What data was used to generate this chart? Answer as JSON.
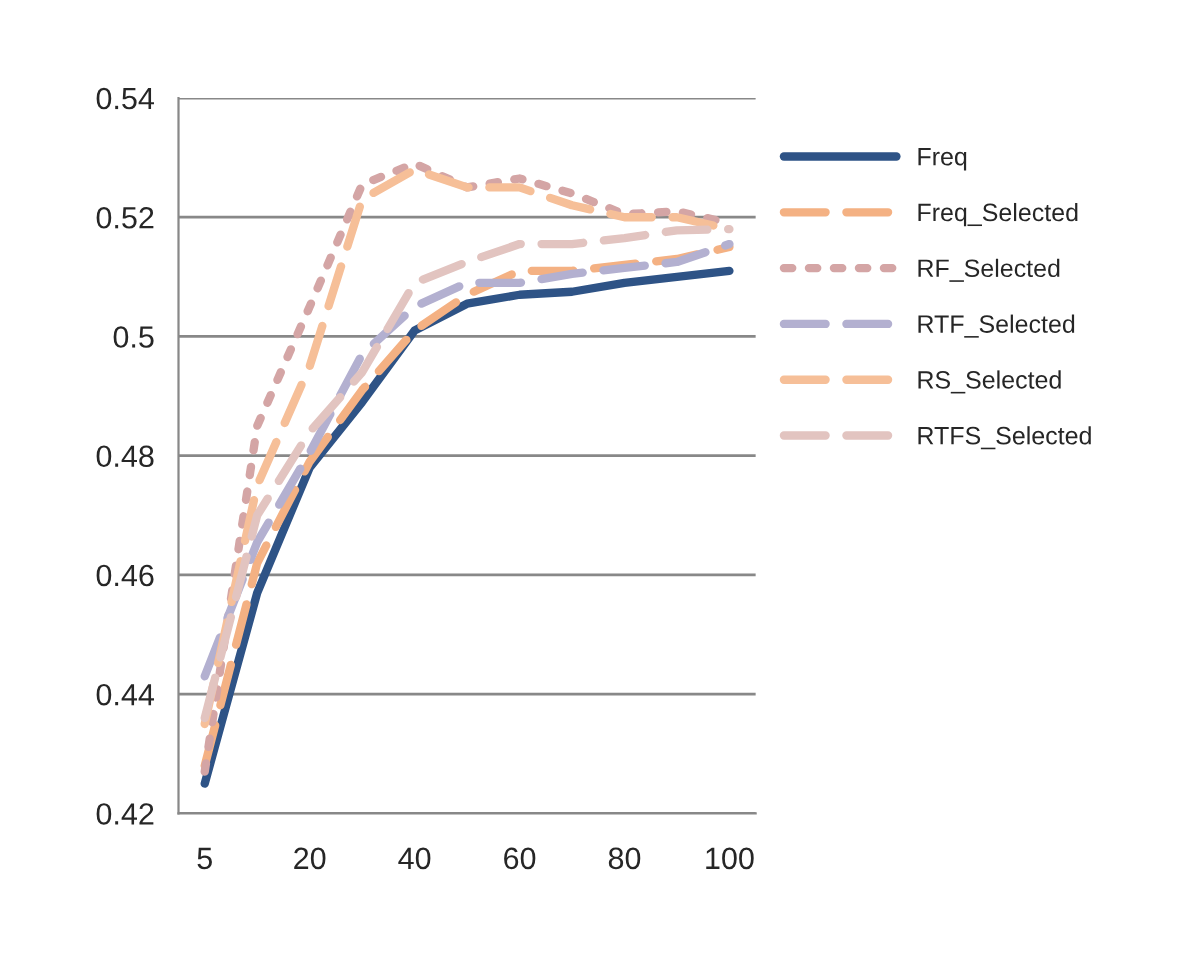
{
  "chart_data": {
    "type": "line",
    "categories": [
      "5",
      null,
      "20",
      null,
      "40",
      null,
      "60",
      null,
      "80",
      null,
      "100"
    ],
    "series": [
      {
        "name": "Freq",
        "color": "#2e5386",
        "line_style": "solid",
        "values": [
          0.425,
          0.457,
          0.478,
          0.489,
          0.501,
          0.5055,
          0.507,
          0.5075,
          0.509,
          0.51,
          0.511
        ]
      },
      {
        "name": "Freq_Selected",
        "color": "#f4b183",
        "line_style": "dashed",
        "values": [
          0.428,
          0.462,
          0.479,
          0.491,
          0.501,
          0.507,
          0.511,
          0.511,
          0.512,
          0.513,
          0.515
        ]
      },
      {
        "name": "RF_Selected",
        "color": "#d4a5a5",
        "line_style": "dotted",
        "values": [
          0.427,
          0.485,
          0.505,
          0.5255,
          0.529,
          0.525,
          0.5265,
          0.524,
          0.5205,
          0.521,
          0.519
        ]
      },
      {
        "name": "RTF_Selected",
        "color": "#b3b0d0",
        "line_style": "dashed",
        "values": [
          0.443,
          0.4655,
          0.4805,
          0.497,
          0.505,
          0.509,
          0.509,
          0.5105,
          0.5115,
          0.5125,
          0.5155
        ]
      },
      {
        "name": "RS_Selected",
        "color": "#f6bf98",
        "line_style": "dashed",
        "values": [
          0.435,
          0.475,
          0.495,
          0.523,
          0.528,
          0.525,
          0.525,
          0.522,
          0.52,
          0.52,
          0.518
        ]
      },
      {
        "name": "RTFS_Selected",
        "color": "#e2c4c0",
        "line_style": "dashed",
        "values": [
          0.436,
          0.47,
          0.484,
          0.494,
          0.509,
          0.5125,
          0.5155,
          0.5155,
          0.5165,
          0.5178,
          0.518
        ]
      }
    ],
    "ylim": [
      0.42,
      0.54
    ],
    "yticks": [
      0.42,
      0.44,
      0.46,
      0.48,
      0.5,
      0.52,
      0.54
    ],
    "grid": "y",
    "legend": "right",
    "marker": "none"
  }
}
